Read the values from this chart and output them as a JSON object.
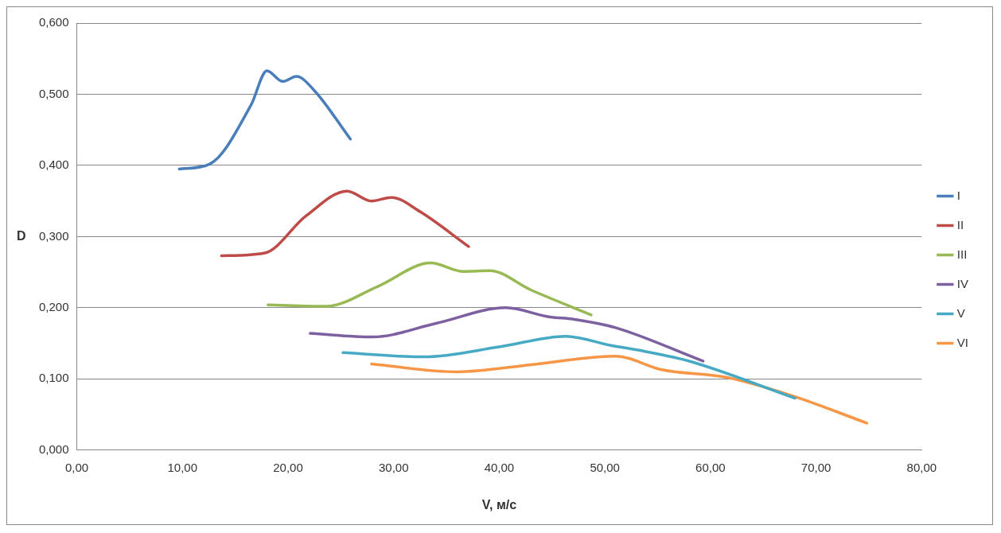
{
  "chart_data": {
    "type": "line",
    "xlabel": "V, м/с",
    "ylabel": "D",
    "xlim": [
      0,
      80
    ],
    "ylim": [
      0,
      0.6
    ],
    "xticks": [
      {
        "value": 0,
        "label": "0,00"
      },
      {
        "value": 10,
        "label": "10,00"
      },
      {
        "value": 20,
        "label": "20,00"
      },
      {
        "value": 30,
        "label": "30,00"
      },
      {
        "value": 40,
        "label": "40,00"
      },
      {
        "value": 50,
        "label": "50,00"
      },
      {
        "value": 60,
        "label": "60,00"
      },
      {
        "value": 70,
        "label": "70,00"
      },
      {
        "value": 80,
        "label": "80,00"
      }
    ],
    "yticks": [
      {
        "value": 0,
        "label": "0,000"
      },
      {
        "value": 0.1,
        "label": "0,100"
      },
      {
        "value": 0.2,
        "label": "0,200"
      },
      {
        "value": 0.3,
        "label": "0,300"
      },
      {
        "value": 0.4,
        "label": "0,400"
      },
      {
        "value": 0.5,
        "label": "0,500"
      },
      {
        "value": 0.6,
        "label": "0,600"
      }
    ],
    "grid": "y",
    "legend": "right",
    "marker": "none",
    "line_style": "solid",
    "series": [
      {
        "name": "I",
        "color": "#4a7ebb",
        "x": [
          9.7,
          12.6,
          16.5,
          18.0,
          19.5,
          20.8,
          22.5,
          25.9
        ],
        "values": [
          0.395,
          0.402,
          0.485,
          0.533,
          0.518,
          0.525,
          0.505,
          0.437
        ]
      },
      {
        "name": "II",
        "color": "#be4b48",
        "x": [
          13.7,
          17.8,
          21.7,
          25.6,
          27.9,
          29.8,
          32.5,
          37.1
        ],
        "values": [
          0.273,
          0.277,
          0.329,
          0.364,
          0.35,
          0.355,
          0.335,
          0.286
        ]
      },
      {
        "name": "III",
        "color": "#98b954",
        "x": [
          18.1,
          23.6,
          28.5,
          33.5,
          36.6,
          39.1,
          43.0,
          48.7
        ],
        "values": [
          0.204,
          0.202,
          0.23,
          0.263,
          0.251,
          0.252,
          0.225,
          0.19
        ]
      },
      {
        "name": "IV",
        "color": "#7d60a0",
        "x": [
          22.1,
          28.0,
          34.0,
          40.6,
          44.8,
          47.0,
          51.0,
          59.3
        ],
        "values": [
          0.164,
          0.159,
          0.178,
          0.2,
          0.187,
          0.184,
          0.172,
          0.125
        ]
      },
      {
        "name": "V",
        "color": "#46aac5",
        "x": [
          25.2,
          32.9,
          40.0,
          46.3,
          50.6,
          53.7,
          58.0,
          68.0
        ],
        "values": [
          0.137,
          0.131,
          0.145,
          0.16,
          0.147,
          0.139,
          0.125,
          0.073
        ]
      },
      {
        "name": "VI",
        "color": "#f79646",
        "x": [
          27.9,
          36.0,
          43.0,
          51.0,
          55.4,
          61.6,
          68.0,
          74.8
        ],
        "values": [
          0.121,
          0.11,
          0.12,
          0.132,
          0.113,
          0.102,
          0.075,
          0.038
        ]
      }
    ]
  }
}
